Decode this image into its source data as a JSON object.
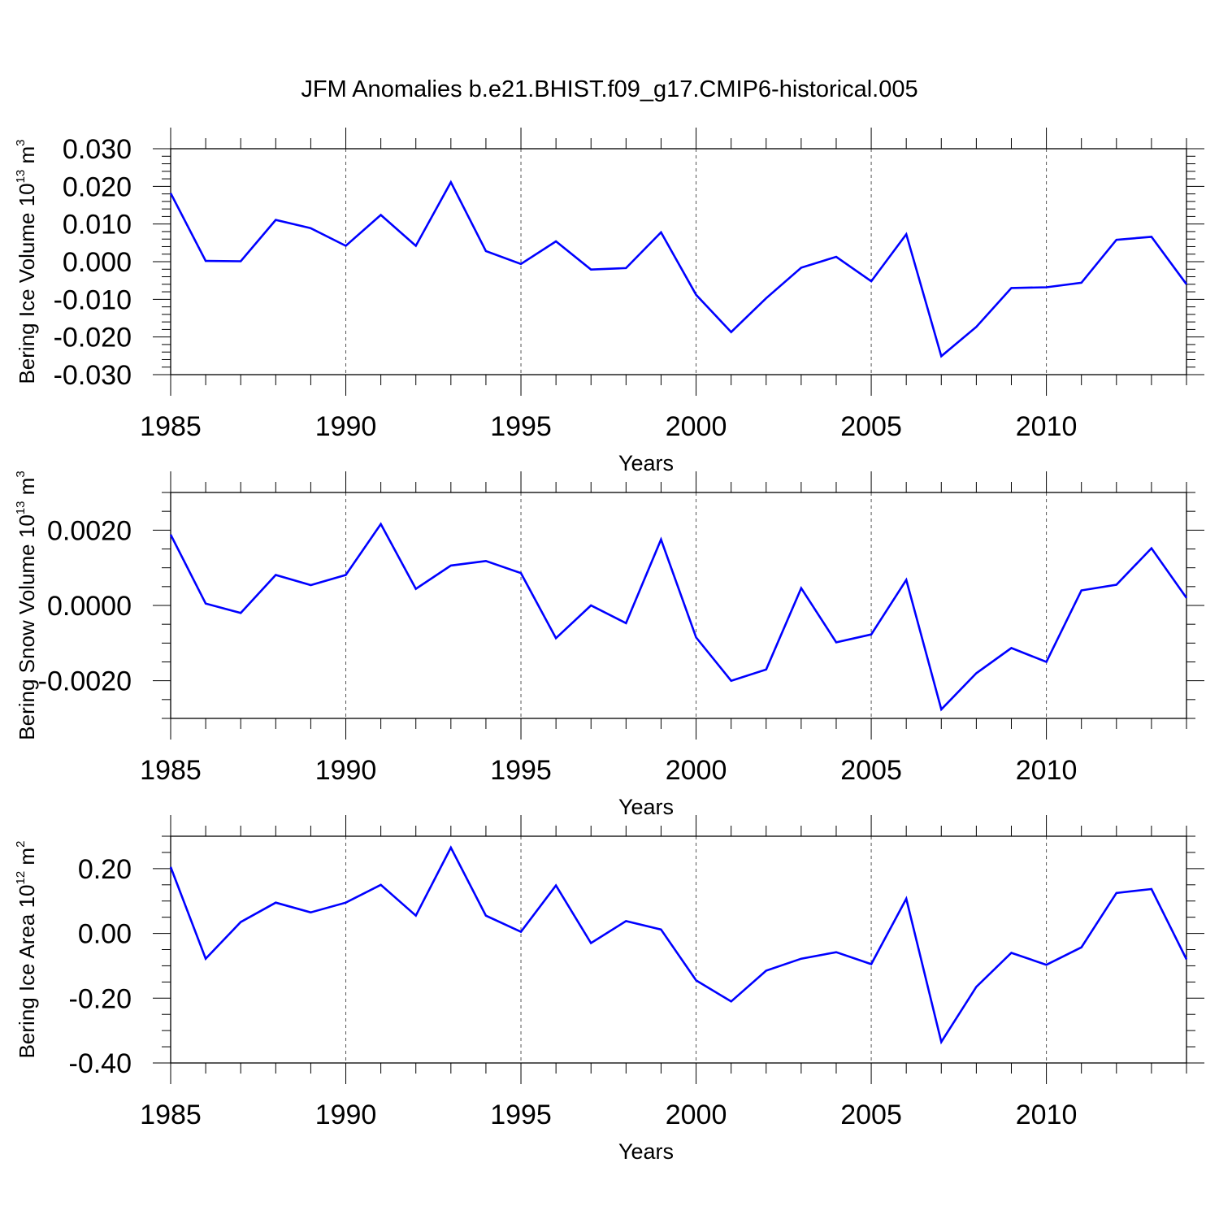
{
  "title": "JFM Anomalies b.e21.BHIST.f09_g17.CMIP6-historical.005",
  "colors": {
    "series": "#0000ff",
    "axes": "#000000",
    "grid": "#555555"
  },
  "chart_data": [
    {
      "type": "line",
      "xlabel": "Years",
      "ylabel": {
        "text": "Bering Ice Volume 10",
        "exponent": "13",
        "unit": " m",
        "unit_exponent": "3"
      },
      "xlim": [
        1985,
        2014
      ],
      "ylim": [
        -0.03,
        0.03
      ],
      "xticks": [
        1985,
        1990,
        1995,
        2000,
        2005,
        2010
      ],
      "xtick_labels": [
        "1985",
        "1990",
        "1995",
        "2000",
        "2005",
        "2010"
      ],
      "yticks": [
        -0.03,
        -0.02,
        -0.01,
        0.0,
        0.01,
        0.02,
        0.03
      ],
      "ytick_labels": [
        "-0.030",
        "-0.020",
        "-0.010",
        "0.000",
        "0.010",
        "0.020",
        "0.030"
      ],
      "y_minor_step": 0.002,
      "grid": "dashed vertical at labeled years",
      "x": [
        1985,
        1986,
        1987,
        1988,
        1989,
        1990,
        1991,
        1992,
        1993,
        1994,
        1995,
        1996,
        1997,
        1998,
        1999,
        2000,
        2001,
        2002,
        2003,
        2004,
        2005,
        2006,
        2007,
        2008,
        2009,
        2010,
        2011,
        2012,
        2013,
        2014
      ],
      "y": [
        0.0182,
        0.0002,
        0.0001,
        0.0111,
        0.0089,
        0.0042,
        0.0124,
        0.0042,
        0.0211,
        0.0028,
        -0.0006,
        0.0054,
        -0.0021,
        -0.0017,
        0.0078,
        -0.0088,
        -0.0187,
        -0.0097,
        -0.0016,
        0.0013,
        -0.0052,
        0.0073,
        -0.0251,
        -0.0173,
        -0.007,
        -0.0068,
        -0.0056,
        0.0058,
        0.0066,
        -0.006
      ]
    },
    {
      "type": "line",
      "xlabel": "Years",
      "ylabel": {
        "text": "Bering Snow Volume 10",
        "exponent": "13",
        "unit": " m",
        "unit_exponent": "3"
      },
      "xlim": [
        1985,
        2014
      ],
      "ylim": [
        -0.003,
        0.003
      ],
      "xticks": [
        1985,
        1990,
        1995,
        2000,
        2005,
        2010
      ],
      "xtick_labels": [
        "1985",
        "1990",
        "1995",
        "2000",
        "2005",
        "2010"
      ],
      "yticks": [
        -0.002,
        0.0,
        0.002
      ],
      "ytick_labels": [
        "-0.0020",
        "0.0000",
        "0.0020"
      ],
      "y_minor_step": 0.0005,
      "grid": "dashed vertical at labeled years",
      "x": [
        1985,
        1986,
        1987,
        1988,
        1989,
        1990,
        1991,
        1992,
        1993,
        1994,
        1995,
        1996,
        1997,
        1998,
        1999,
        2000,
        2001,
        2002,
        2003,
        2004,
        2005,
        2006,
        2007,
        2008,
        2009,
        2010,
        2011,
        2012,
        2013,
        2014
      ],
      "y": [
        0.00188,
        5e-05,
        -0.0002,
        0.00081,
        0.00054,
        0.00081,
        0.00216,
        0.00044,
        0.00106,
        0.00118,
        0.00086,
        -0.00087,
        0.0,
        -0.00047,
        0.00175,
        -0.00085,
        -0.002,
        -0.0017,
        0.00046,
        -0.00098,
        -0.00077,
        0.00068,
        -0.00276,
        -0.0018,
        -0.00113,
        -0.0015,
        0.0004,
        0.00055,
        0.00152,
        0.0002
      ]
    },
    {
      "type": "line",
      "xlabel": "Years",
      "ylabel": {
        "text": "Bering Ice Area 10",
        "exponent": "12",
        "unit": " m",
        "unit_exponent": "2"
      },
      "xlim": [
        1985,
        2014
      ],
      "ylim": [
        -0.4,
        0.3
      ],
      "xticks": [
        1985,
        1990,
        1995,
        2000,
        2005,
        2010
      ],
      "xtick_labels": [
        "1985",
        "1990",
        "1995",
        "2000",
        "2005",
        "2010"
      ],
      "yticks": [
        -0.4,
        -0.2,
        0.0,
        0.2
      ],
      "ytick_labels": [
        "-0.40",
        "-0.20",
        "0.00",
        "0.20"
      ],
      "y_minor_step": 0.05,
      "grid": "dashed vertical at labeled years",
      "x": [
        1985,
        1986,
        1987,
        1988,
        1989,
        1990,
        1991,
        1992,
        1993,
        1994,
        1995,
        1996,
        1997,
        1998,
        1999,
        2000,
        2001,
        2002,
        2003,
        2004,
        2005,
        2006,
        2007,
        2008,
        2009,
        2010,
        2011,
        2012,
        2013,
        2014
      ],
      "y": [
        0.205,
        -0.078,
        0.035,
        0.095,
        0.065,
        0.095,
        0.15,
        0.055,
        0.265,
        0.055,
        0.005,
        0.148,
        -0.03,
        0.038,
        0.012,
        -0.145,
        -0.21,
        -0.115,
        -0.078,
        -0.058,
        -0.095,
        0.107,
        -0.335,
        -0.165,
        -0.06,
        -0.097,
        -0.043,
        0.125,
        0.137,
        -0.08
      ]
    }
  ]
}
